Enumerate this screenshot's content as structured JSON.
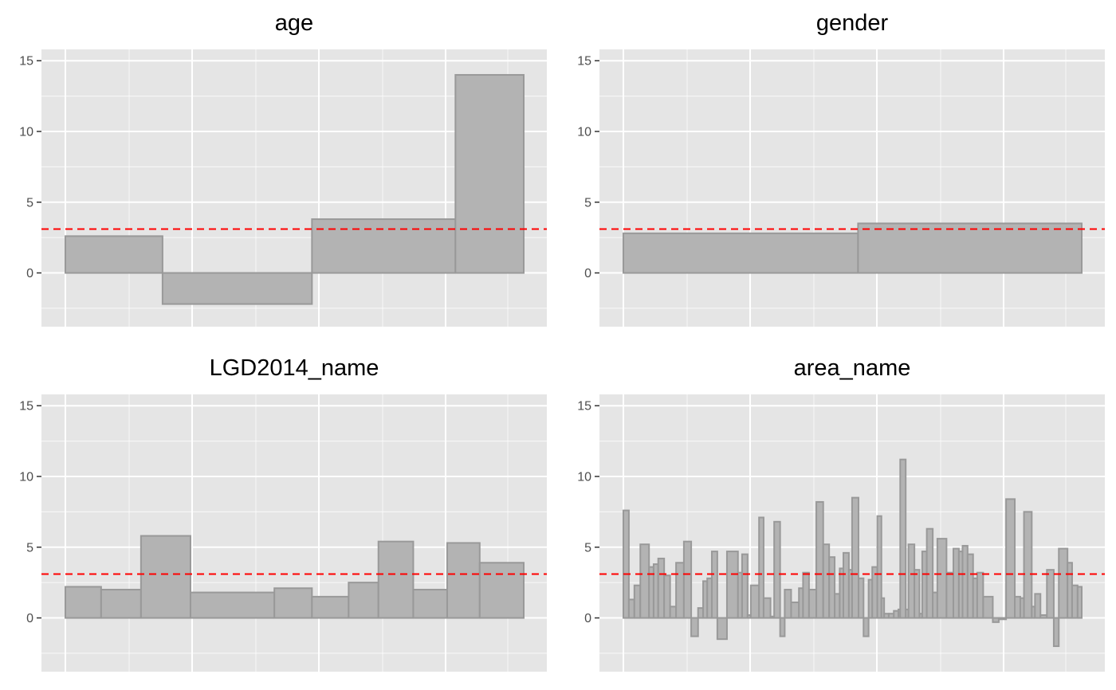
{
  "chart_data": {
    "type": "bar",
    "reference_line": {
      "y": 3.1,
      "color": "#ff0000",
      "style": "dashed"
    },
    "y_ticks": [
      0,
      5,
      10,
      15
    ],
    "ylim": [
      -3.8,
      15.8
    ],
    "grid": true,
    "panels": [
      {
        "title": "age",
        "bars": [
          {
            "start": 0.0,
            "end": 21.2,
            "value": 2.6
          },
          {
            "start": 21.2,
            "end": 53.8,
            "value": -2.2
          },
          {
            "start": 53.8,
            "end": 85.1,
            "value": 3.8
          },
          {
            "start": 85.1,
            "end": 100.0,
            "value": 14.0
          }
        ]
      },
      {
        "title": "gender",
        "bars": [
          {
            "start": 0.0,
            "end": 51.2,
            "value": 2.8
          },
          {
            "start": 51.2,
            "end": 100.0,
            "value": 3.5
          }
        ]
      },
      {
        "title": "LGD2014_name",
        "bars": [
          {
            "start": 0.0,
            "end": 7.8,
            "value": 2.2
          },
          {
            "start": 7.8,
            "end": 16.5,
            "value": 2.0
          },
          {
            "start": 16.5,
            "end": 27.3,
            "value": 5.8
          },
          {
            "start": 27.3,
            "end": 45.6,
            "value": 1.8
          },
          {
            "start": 45.6,
            "end": 53.8,
            "value": 2.1
          },
          {
            "start": 53.8,
            "end": 61.8,
            "value": 1.5
          },
          {
            "start": 61.8,
            "end": 68.3,
            "value": 2.5
          },
          {
            "start": 68.3,
            "end": 75.9,
            "value": 5.4
          },
          {
            "start": 75.9,
            "end": 83.3,
            "value": 2.0
          },
          {
            "start": 83.3,
            "end": 90.4,
            "value": 5.3
          },
          {
            "start": 90.4,
            "end": 100.0,
            "value": 3.9
          }
        ]
      },
      {
        "title": "area_name",
        "bars": [
          {
            "start": 0.0,
            "end": 1.2,
            "value": 7.6
          },
          {
            "start": 1.2,
            "end": 2.4,
            "value": 1.3
          },
          {
            "start": 2.4,
            "end": 3.7,
            "value": 2.3
          },
          {
            "start": 3.7,
            "end": 5.6,
            "value": 5.2
          },
          {
            "start": 5.6,
            "end": 6.6,
            "value": 3.6
          },
          {
            "start": 6.6,
            "end": 7.6,
            "value": 3.8
          },
          {
            "start": 7.6,
            "end": 8.9,
            "value": 4.2
          },
          {
            "start": 8.9,
            "end": 10.2,
            "value": 3.0
          },
          {
            "start": 10.2,
            "end": 11.5,
            "value": 0.8
          },
          {
            "start": 11.5,
            "end": 13.2,
            "value": 3.9
          },
          {
            "start": 13.2,
            "end": 14.8,
            "value": 5.4
          },
          {
            "start": 14.8,
            "end": 16.3,
            "value": -1.3
          },
          {
            "start": 16.3,
            "end": 17.4,
            "value": 0.7
          },
          {
            "start": 17.4,
            "end": 18.3,
            "value": 2.6
          },
          {
            "start": 18.3,
            "end": 19.3,
            "value": 2.8
          },
          {
            "start": 19.3,
            "end": 20.5,
            "value": 4.7
          },
          {
            "start": 20.5,
            "end": 22.6,
            "value": -1.5
          },
          {
            "start": 22.6,
            "end": 25.0,
            "value": 4.7
          },
          {
            "start": 25.0,
            "end": 25.9,
            "value": 3.2
          },
          {
            "start": 25.9,
            "end": 27.1,
            "value": 4.5
          },
          {
            "start": 27.1,
            "end": 27.8,
            "value": 0.2
          },
          {
            "start": 27.8,
            "end": 29.6,
            "value": 2.3
          },
          {
            "start": 29.6,
            "end": 30.6,
            "value": 7.1
          },
          {
            "start": 30.6,
            "end": 32.1,
            "value": 1.4
          },
          {
            "start": 32.1,
            "end": 32.9,
            "value": 0.1
          },
          {
            "start": 32.9,
            "end": 34.2,
            "value": 6.8
          },
          {
            "start": 34.2,
            "end": 35.2,
            "value": -1.3
          },
          {
            "start": 35.2,
            "end": 36.6,
            "value": 2.0
          },
          {
            "start": 36.6,
            "end": 38.3,
            "value": 1.1
          },
          {
            "start": 38.3,
            "end": 39.2,
            "value": 2.1
          },
          {
            "start": 39.2,
            "end": 40.5,
            "value": 3.2
          },
          {
            "start": 40.5,
            "end": 42.1,
            "value": 2.0
          },
          {
            "start": 42.1,
            "end": 43.6,
            "value": 8.2
          },
          {
            "start": 43.6,
            "end": 44.9,
            "value": 5.2
          },
          {
            "start": 44.9,
            "end": 46.1,
            "value": 4.3
          },
          {
            "start": 46.1,
            "end": 47.2,
            "value": 1.7
          },
          {
            "start": 47.2,
            "end": 48.0,
            "value": 3.5
          },
          {
            "start": 48.0,
            "end": 49.2,
            "value": 4.6
          },
          {
            "start": 49.2,
            "end": 49.9,
            "value": 3.4
          },
          {
            "start": 49.9,
            "end": 51.3,
            "value": 8.5
          },
          {
            "start": 51.3,
            "end": 52.4,
            "value": 2.8
          },
          {
            "start": 52.4,
            "end": 53.5,
            "value": -1.3
          },
          {
            "start": 53.5,
            "end": 54.3,
            "value": 2.7
          },
          {
            "start": 54.3,
            "end": 55.4,
            "value": 3.6
          },
          {
            "start": 55.4,
            "end": 56.3,
            "value": 7.2
          },
          {
            "start": 56.3,
            "end": 56.9,
            "value": 1.4
          },
          {
            "start": 56.9,
            "end": 57.9,
            "value": 0.3
          },
          {
            "start": 57.9,
            "end": 59.0,
            "value": 0.3
          },
          {
            "start": 59.0,
            "end": 60.0,
            "value": 0.5
          },
          {
            "start": 60.0,
            "end": 60.4,
            "value": 0.6
          },
          {
            "start": 60.4,
            "end": 61.6,
            "value": 11.2
          },
          {
            "start": 61.6,
            "end": 62.2,
            "value": 0.6
          },
          {
            "start": 62.2,
            "end": 63.5,
            "value": 5.2
          },
          {
            "start": 63.5,
            "end": 64.6,
            "value": 3.4
          },
          {
            "start": 64.6,
            "end": 65.2,
            "value": 0.3
          },
          {
            "start": 65.2,
            "end": 66.2,
            "value": 4.7
          },
          {
            "start": 66.2,
            "end": 67.5,
            "value": 6.3
          },
          {
            "start": 67.5,
            "end": 68.5,
            "value": 1.8
          },
          {
            "start": 68.5,
            "end": 70.5,
            "value": 5.6
          },
          {
            "start": 70.5,
            "end": 72.0,
            "value": 3.2
          },
          {
            "start": 72.0,
            "end": 73.2,
            "value": 4.9
          },
          {
            "start": 73.2,
            "end": 74.0,
            "value": 4.7
          },
          {
            "start": 74.0,
            "end": 75.1,
            "value": 5.1
          },
          {
            "start": 75.1,
            "end": 76.3,
            "value": 4.5
          },
          {
            "start": 76.3,
            "end": 77.2,
            "value": 2.8
          },
          {
            "start": 77.2,
            "end": 78.5,
            "value": 3.2
          },
          {
            "start": 78.5,
            "end": 80.6,
            "value": 1.5
          },
          {
            "start": 80.6,
            "end": 81.9,
            "value": -0.3
          },
          {
            "start": 81.9,
            "end": 83.5,
            "value": -0.1
          },
          {
            "start": 83.5,
            "end": 85.4,
            "value": 8.4
          },
          {
            "start": 85.4,
            "end": 86.6,
            "value": 1.5
          },
          {
            "start": 86.6,
            "end": 87.4,
            "value": 1.4
          },
          {
            "start": 87.4,
            "end": 89.1,
            "value": 7.5
          },
          {
            "start": 89.1,
            "end": 89.8,
            "value": 0.8
          },
          {
            "start": 89.8,
            "end": 91.0,
            "value": 1.7
          },
          {
            "start": 91.0,
            "end": 92.4,
            "value": 0.2
          },
          {
            "start": 92.4,
            "end": 93.9,
            "value": 3.4
          },
          {
            "start": 93.9,
            "end": 95.0,
            "value": -2.0
          },
          {
            "start": 95.0,
            "end": 96.9,
            "value": 4.9
          },
          {
            "start": 96.9,
            "end": 97.9,
            "value": 3.9
          },
          {
            "start": 97.9,
            "end": 99.1,
            "value": 2.3
          },
          {
            "start": 99.1,
            "end": 100.0,
            "value": 2.2
          }
        ]
      }
    ]
  }
}
